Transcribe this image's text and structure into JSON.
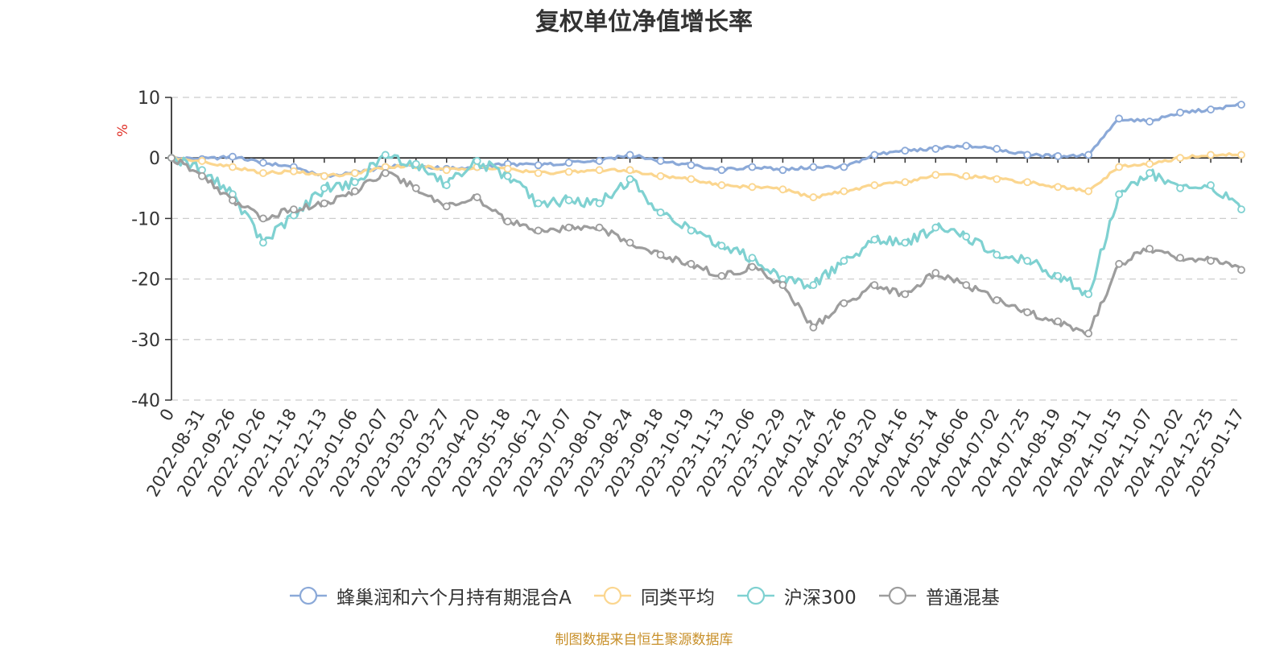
{
  "chart_data": {
    "type": "line",
    "title": "复权单位净值增长率",
    "ylabel": "%",
    "xlabel": "",
    "ylim": [
      -40,
      10
    ],
    "yticks": [
      10,
      0,
      -10,
      -20,
      -30,
      -40
    ],
    "grid": true,
    "legend_position": "bottom",
    "categories": [
      "0",
      "2022-08-31",
      "2022-09-26",
      "2022-10-26",
      "2022-11-18",
      "2022-12-13",
      "2023-01-06",
      "2023-02-07",
      "2023-03-02",
      "2023-03-27",
      "2023-04-20",
      "2023-05-18",
      "2023-06-12",
      "2023-07-07",
      "2023-08-01",
      "2023-08-24",
      "2023-09-18",
      "2023-10-19",
      "2023-11-13",
      "2023-12-06",
      "2023-12-29",
      "2024-01-24",
      "2024-02-26",
      "2024-03-20",
      "2024-04-16",
      "2024-05-14",
      "2024-06-06",
      "2024-07-02",
      "2024-07-25",
      "2024-08-19",
      "2024-09-11",
      "2024-10-15",
      "2024-11-07",
      "2024-12-02",
      "2024-12-25",
      "2025-01-17"
    ],
    "series": [
      {
        "name": "蜂巢润和六个月持有期混合A",
        "color": "#8ba9d8",
        "values": [
          0,
          -0.2,
          0.2,
          -0.8,
          -1.5,
          -3.0,
          -2.5,
          -1.5,
          -1.2,
          -1.8,
          -1.5,
          -1.0,
          -1.2,
          -0.8,
          -0.5,
          0.5,
          -0.5,
          -1.2,
          -2.0,
          -1.5,
          -2.0,
          -1.5,
          -1.5,
          0.5,
          1.2,
          1.5,
          2.0,
          1.5,
          0.5,
          0.3,
          0.5,
          6.5,
          6.0,
          7.5,
          8.0,
          8.8
        ]
      },
      {
        "name": "同类平均",
        "color": "#fbd68f",
        "values": [
          0,
          -0.5,
          -1.5,
          -2.5,
          -2.2,
          -3.0,
          -2.5,
          -1.5,
          -1.2,
          -2.0,
          -1.5,
          -1.8,
          -2.5,
          -2.3,
          -2.0,
          -2.0,
          -3.0,
          -3.5,
          -4.5,
          -4.8,
          -5.2,
          -6.5,
          -5.5,
          -4.5,
          -4.0,
          -2.8,
          -3.0,
          -3.5,
          -4.0,
          -4.8,
          -5.5,
          -1.5,
          -1.0,
          0.0,
          0.5,
          0.5
        ]
      },
      {
        "name": "沪深300",
        "color": "#7fd1d1",
        "values": [
          0,
          -2.0,
          -6.0,
          -14.0,
          -9.5,
          -5.0,
          -4.0,
          0.5,
          -1.0,
          -4.5,
          -0.5,
          -3.0,
          -7.5,
          -7.0,
          -7.5,
          -3.5,
          -9.0,
          -12.0,
          -14.5,
          -16.5,
          -20.0,
          -21.0,
          -17.0,
          -13.5,
          -14.0,
          -11.5,
          -13.0,
          -16.0,
          -17.0,
          -19.5,
          -22.5,
          -6.0,
          -2.5,
          -5.0,
          -4.5,
          -8.5
        ]
      },
      {
        "name": "普通混基",
        "color": "#9d9d9d",
        "values": [
          0,
          -3.0,
          -7.0,
          -10.0,
          -8.5,
          -7.5,
          -5.5,
          -2.5,
          -5.0,
          -8.0,
          -6.5,
          -10.5,
          -12.0,
          -11.5,
          -11.5,
          -14.0,
          -16.0,
          -17.5,
          -19.5,
          -18.0,
          -21.0,
          -28.0,
          -24.0,
          -21.0,
          -22.5,
          -19.0,
          -21.0,
          -23.5,
          -25.5,
          -27.0,
          -29.0,
          -17.5,
          -15.0,
          -16.5,
          -17.0,
          -18.5
        ]
      }
    ],
    "source_note": "制图数据来自恒生聚源数据库"
  }
}
